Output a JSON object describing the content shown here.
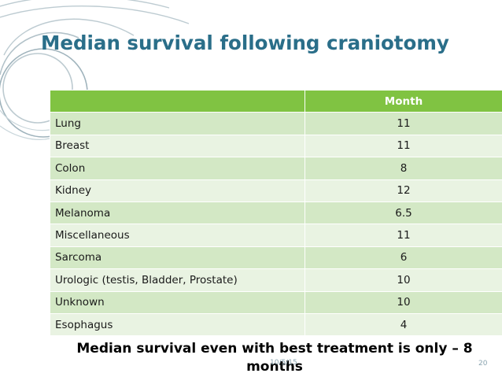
{
  "slide": {
    "title": "Median survival following craniotomy",
    "footnote": "Median survival even with best treatment is only – 8 months",
    "date": "10/5/15",
    "number": "20"
  },
  "table": {
    "header": [
      "",
      "Month"
    ],
    "rows": [
      {
        "label": "Lung",
        "value": "11"
      },
      {
        "label": "Breast",
        "value": "11"
      },
      {
        "label": "Colon",
        "value": "8"
      },
      {
        "label": "Kidney",
        "value": "12"
      },
      {
        "label": "Melanoma",
        "value": "6.5"
      },
      {
        "label": "Miscellaneous",
        "value": "11"
      },
      {
        "label": "Sarcoma",
        "value": "6"
      },
      {
        "label": "Urologic (testis, Bladder, Prostate)",
        "value": "10"
      },
      {
        "label": "Unknown",
        "value": "10"
      },
      {
        "label": "Esophagus",
        "value": "4"
      }
    ]
  },
  "colors": {
    "title": "#2a6e89",
    "header_bg": "#80c342",
    "row_dark": "#d3e8c5",
    "row_light": "#e9f3e2",
    "decoration": "#9fb3bc"
  }
}
